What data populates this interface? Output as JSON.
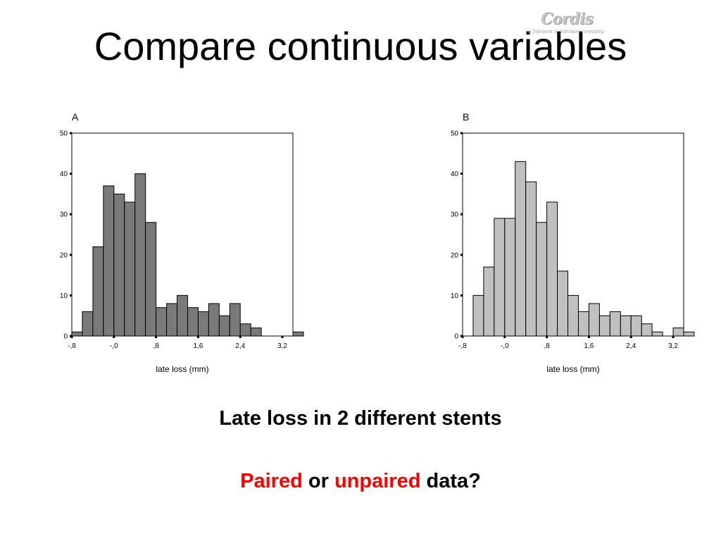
{
  "slide": {
    "title": "Compare continuous variables",
    "logo": {
      "name": "Cordis",
      "tagline": "a Johnson & Johnson company"
    },
    "subtitle": "Late loss in 2 different stents",
    "question": {
      "word1": "Paired",
      "word2": "or",
      "word3": "unpaired",
      "word4": "data?"
    }
  },
  "colors": {
    "accent_red": "#ff0000",
    "bars_a": "#7a7a7a",
    "bars_b": "#c0c0c0"
  },
  "chart_data": [
    {
      "type": "bar",
      "title": "A",
      "xlabel": "late loss (mm)",
      "ylabel": "",
      "ylim": [
        0,
        50
      ],
      "yticks": [
        0,
        10,
        20,
        30,
        40,
        50
      ],
      "xlim": [
        -0.8,
        3.4
      ],
      "xtick_values": [
        -0.8,
        0.0,
        0.8,
        1.6,
        2.4,
        3.2
      ],
      "xtick_labels": [
        "-,8",
        "-,0",
        ",8",
        "1,6",
        "2,4",
        "3,2"
      ],
      "bin_start": -0.8,
      "bin_width": 0.2,
      "values": [
        1,
        6,
        22,
        37,
        35,
        33,
        40,
        28,
        7,
        8,
        10,
        7,
        6,
        8,
        5,
        8,
        3,
        2,
        0,
        0,
        0,
        1
      ],
      "bar_color": "#7a7a7a"
    },
    {
      "type": "bar",
      "title": "B",
      "xlabel": "late loss (mm)",
      "ylabel": "",
      "ylim": [
        0,
        50
      ],
      "yticks": [
        0,
        10,
        20,
        30,
        40,
        50
      ],
      "xlim": [
        -0.8,
        3.4
      ],
      "xtick_values": [
        -0.8,
        0.0,
        0.8,
        1.6,
        2.4,
        3.2
      ],
      "xtick_labels": [
        "-,8",
        "-,0",
        ",8",
        "1,6",
        "2,4",
        "3,2"
      ],
      "bin_start": -0.6,
      "bin_width": 0.2,
      "values": [
        10,
        17,
        29,
        29,
        43,
        38,
        28,
        33,
        16,
        10,
        6,
        8,
        5,
        6,
        5,
        5,
        3,
        1,
        0,
        2,
        1
      ],
      "bar_color": "#c0c0c0"
    }
  ]
}
